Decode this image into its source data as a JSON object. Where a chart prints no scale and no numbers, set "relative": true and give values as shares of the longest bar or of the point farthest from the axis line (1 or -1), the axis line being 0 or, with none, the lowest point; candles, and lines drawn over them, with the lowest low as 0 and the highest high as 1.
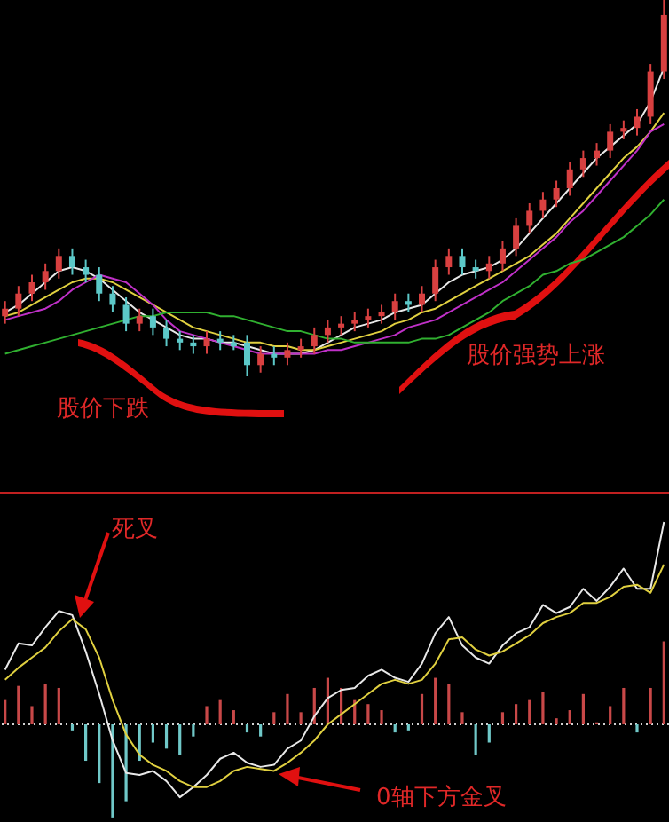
{
  "chart_data": [
    {
      "type": "candlestick",
      "relative": true,
      "categories": [
        null,
        null,
        null,
        null,
        null,
        null,
        null,
        null,
        null,
        null,
        null,
        null,
        null,
        null,
        null,
        null,
        null,
        null,
        null,
        null,
        null,
        null,
        null,
        null,
        null,
        null,
        null,
        null,
        null,
        null,
        null,
        null,
        null,
        null,
        null,
        null,
        null,
        null,
        null,
        null,
        null,
        null,
        null,
        null,
        null,
        null,
        null,
        null,
        null,
        null
      ],
      "ohlc": [
        [
          0.16,
          0.2,
          0.14,
          0.18
        ],
        [
          0.18,
          0.24,
          0.16,
          0.22
        ],
        [
          0.22,
          0.27,
          0.2,
          0.25
        ],
        [
          0.25,
          0.3,
          0.23,
          0.28
        ],
        [
          0.28,
          0.34,
          0.26,
          0.32
        ],
        [
          0.32,
          0.34,
          0.27,
          0.29
        ],
        [
          0.29,
          0.31,
          0.25,
          0.27
        ],
        [
          0.27,
          0.29,
          0.2,
          0.22
        ],
        [
          0.22,
          0.24,
          0.17,
          0.19
        ],
        [
          0.19,
          0.21,
          0.12,
          0.14
        ],
        [
          0.14,
          0.18,
          0.12,
          0.16
        ],
        [
          0.16,
          0.18,
          0.11,
          0.13
        ],
        [
          0.13,
          0.15,
          0.08,
          0.1
        ],
        [
          0.1,
          0.12,
          0.07,
          0.09
        ],
        [
          0.09,
          0.11,
          0.06,
          0.08
        ],
        [
          0.08,
          0.12,
          0.06,
          0.1
        ],
        [
          0.1,
          0.12,
          0.07,
          0.09
        ],
        [
          0.09,
          0.11,
          0.07,
          0.08
        ],
        [
          0.09,
          0.11,
          0,
          0.03
        ],
        [
          0.03,
          0.08,
          0.01,
          0.06
        ],
        [
          0.06,
          0.08,
          0.03,
          0.05
        ],
        [
          0.05,
          0.09,
          0.03,
          0.07
        ],
        [
          0.07,
          0.1,
          0.05,
          0.08
        ],
        [
          0.08,
          0.13,
          0.06,
          0.11
        ],
        [
          0.11,
          0.15,
          0.09,
          0.13
        ],
        [
          0.13,
          0.16,
          0.11,
          0.14
        ],
        [
          0.14,
          0.17,
          0.12,
          0.15
        ],
        [
          0.15,
          0.18,
          0.13,
          0.16
        ],
        [
          0.16,
          0.19,
          0.14,
          0.17
        ],
        [
          0.17,
          0.22,
          0.15,
          0.2
        ],
        [
          0.2,
          0.22,
          0.17,
          0.19
        ],
        [
          0.19,
          0.24,
          0.17,
          0.22
        ],
        [
          0.22,
          0.31,
          0.2,
          0.29
        ],
        [
          0.29,
          0.34,
          0.27,
          0.32
        ],
        [
          0.32,
          0.34,
          0.27,
          0.29
        ],
        [
          0.29,
          0.31,
          0.26,
          0.28
        ],
        [
          0.28,
          0.32,
          0.26,
          0.3
        ],
        [
          0.3,
          0.36,
          0.28,
          0.34
        ],
        [
          0.34,
          0.42,
          0.32,
          0.4
        ],
        [
          0.4,
          0.46,
          0.38,
          0.44
        ],
        [
          0.44,
          0.49,
          0.42,
          0.47
        ],
        [
          0.47,
          0.52,
          0.45,
          0.5
        ],
        [
          0.5,
          0.57,
          0.48,
          0.55
        ],
        [
          0.55,
          0.6,
          0.53,
          0.58
        ],
        [
          0.58,
          0.62,
          0.56,
          0.6
        ],
        [
          0.6,
          0.67,
          0.58,
          0.65
        ],
        [
          0.65,
          0.68,
          0.63,
          0.66
        ],
        [
          0.66,
          0.71,
          0.64,
          0.69
        ],
        [
          0.69,
          0.83,
          0.67,
          0.81
        ],
        [
          0.81,
          1,
          0.79,
          0.96
        ]
      ],
      "colors": [
        "#d84040",
        "#d84040",
        "#d84040",
        "#d84040",
        "#d84040",
        "#5cc8c8",
        "#5cc8c8",
        "#5cc8c8",
        "#5cc8c8",
        "#5cc8c8",
        "#d84040",
        "#5cc8c8",
        "#5cc8c8",
        "#5cc8c8",
        "#5cc8c8",
        "#d84040",
        "#5cc8c8",
        "#5cc8c8",
        "#5cc8c8",
        "#d84040",
        "#5cc8c8",
        "#d84040",
        "#d84040",
        "#d84040",
        "#d84040",
        "#d84040",
        "#d84040",
        "#d84040",
        "#d84040",
        "#d84040",
        "#5cc8c8",
        "#d84040",
        "#d84040",
        "#d84040",
        "#5cc8c8",
        "#5cc8c8",
        "#d84040",
        "#d84040",
        "#d84040",
        "#d84040",
        "#d84040",
        "#d84040",
        "#d84040",
        "#d84040",
        "#d84040",
        "#d84040",
        "#d84040",
        "#d84040",
        "#d84040",
        "#d84040"
      ],
      "series": [
        {
          "type": "line",
          "color": "#e8e8e8",
          "values": [
            0.17,
            0.19,
            0.22,
            0.25,
            0.28,
            0.29,
            0.28,
            0.26,
            0.23,
            0.2,
            0.17,
            0.15,
            0.13,
            0.11,
            0.1,
            0.1,
            0.09,
            0.09,
            0.08,
            0.07,
            0.06,
            0.06,
            0.06,
            0.07,
            0.09,
            0.11,
            0.13,
            0.14,
            0.15,
            0.17,
            0.18,
            0.19,
            0.22,
            0.25,
            0.27,
            0.28,
            0.29,
            0.31,
            0.34,
            0.38,
            0.42,
            0.46,
            0.5,
            0.54,
            0.58,
            0.61,
            0.64,
            0.67,
            0.73,
            0.82
          ]
        },
        {
          "type": "line",
          "color": "#e0d040",
          "values": [
            0.16,
            0.17,
            0.19,
            0.21,
            0.23,
            0.25,
            0.26,
            0.26,
            0.25,
            0.23,
            0.21,
            0.19,
            0.17,
            0.15,
            0.13,
            0.12,
            0.11,
            0.1,
            0.09,
            0.09,
            0.08,
            0.08,
            0.07,
            0.07,
            0.08,
            0.09,
            0.1,
            0.11,
            0.12,
            0.14,
            0.15,
            0.17,
            0.18,
            0.2,
            0.22,
            0.24,
            0.26,
            0.28,
            0.3,
            0.32,
            0.35,
            0.38,
            0.42,
            0.46,
            0.5,
            0.54,
            0.58,
            0.61,
            0.65,
            0.7
          ]
        },
        {
          "type": "line",
          "color": "#c030c8",
          "values": [
            0.15,
            0.16,
            0.17,
            0.18,
            0.2,
            0.23,
            0.25,
            0.27,
            0.26,
            0.25,
            0.22,
            0.19,
            0.15,
            0.12,
            0.11,
            0.1,
            0.09,
            0.08,
            0.07,
            0.06,
            0.06,
            0.06,
            0.06,
            0.06,
            0.07,
            0.07,
            0.08,
            0.09,
            0.1,
            0.11,
            0.13,
            0.14,
            0.15,
            0.17,
            0.19,
            0.21,
            0.23,
            0.25,
            0.28,
            0.31,
            0.34,
            0.37,
            0.41,
            0.44,
            0.48,
            0.52,
            0.56,
            0.6,
            0.65,
            0.67
          ]
        },
        {
          "type": "line",
          "color": "#30b030",
          "values": [
            0.06,
            0.07,
            0.08,
            0.09,
            0.1,
            0.11,
            0.12,
            0.13,
            0.14,
            0.15,
            0.16,
            0.16,
            0.17,
            0.17,
            0.17,
            0.17,
            0.16,
            0.16,
            0.15,
            0.14,
            0.13,
            0.12,
            0.12,
            0.11,
            0.1,
            0.1,
            0.09,
            0.09,
            0.09,
            0.09,
            0.09,
            0.1,
            0.1,
            0.11,
            0.13,
            0.15,
            0.17,
            0.2,
            0.22,
            0.24,
            0.27,
            0.28,
            0.3,
            0.31,
            0.33,
            0.35,
            0.37,
            0.4,
            0.43,
            0.47
          ]
        }
      ],
      "annotations": [
        "股价下跌",
        "股价强势上涨"
      ]
    },
    {
      "type": "bar",
      "relative": true,
      "ref_lines": [
        {
          "axis": "y",
          "value": 0,
          "color": "#d0d0d0",
          "line_style": "dotted"
        }
      ],
      "categories": [
        null,
        null,
        null,
        null,
        null,
        null,
        null,
        null,
        null,
        null,
        null,
        null,
        null,
        null,
        null,
        null,
        null,
        null,
        null,
        null,
        null,
        null,
        null,
        null,
        null,
        null,
        null,
        null,
        null,
        null,
        null,
        null,
        null,
        null,
        null,
        null,
        null,
        null,
        null,
        null,
        null,
        null,
        null,
        null,
        null,
        null,
        null,
        null,
        null,
        null
      ],
      "series": [
        {
          "type": "bar",
          "colors": [
            "#c84848",
            "#c84848",
            "#c84848",
            "#c84848",
            "#c84848",
            "#70c8c8",
            "#70c8c8",
            "#70c8c8",
            "#70c8c8",
            "#70c8c8",
            "#70c8c8",
            "#70c8c8",
            "#70c8c8",
            "#70c8c8",
            "#70c8c8",
            "#c84848",
            "#c84848",
            "#c84848",
            "#70c8c8",
            "#70c8c8",
            "#c84848",
            "#c84848",
            "#c84848",
            "#c84848",
            "#c84848",
            "#c84848",
            "#c84848",
            "#c84848",
            "#c84848",
            "#70c8c8",
            "#70c8c8",
            "#c84848",
            "#c84848",
            "#c84848",
            "#c84848",
            "#70c8c8",
            "#70c8c8",
            "#c84848",
            "#c84848",
            "#c84848",
            "#c84848",
            "#c84848",
            "#c84848",
            "#c84848",
            "#c84848",
            "#c84848",
            "#c84848",
            "#70c8c8",
            "#c84848",
            "#c84848"
          ],
          "values": [
            0.12,
            0.19,
            0.09,
            0.2,
            0.18,
            -0.03,
            -0.18,
            -0.29,
            -0.46,
            -0.38,
            -0.18,
            -0.09,
            -0.12,
            -0.15,
            -0.06,
            0.09,
            0.12,
            0.07,
            -0.04,
            -0.06,
            0.06,
            0.15,
            0.06,
            0.18,
            0.23,
            0.18,
            0.12,
            0.1,
            0.07,
            -0.04,
            -0.03,
            0.15,
            0.23,
            0.2,
            0.06,
            -0.15,
            -0.09,
            0.06,
            0.1,
            0.12,
            0.16,
            0.03,
            0.07,
            0.15,
            0.01,
            0.09,
            0.18,
            -0.04,
            0.18,
            0.41
          ]
        },
        {
          "type": "line",
          "color": "#e8e8e8",
          "values": [
            0.27,
            0.4,
            0.39,
            0.48,
            0.56,
            0.54,
            0.36,
            0.15,
            -0.08,
            -0.24,
            -0.25,
            -0.23,
            -0.28,
            -0.36,
            -0.31,
            -0.25,
            -0.17,
            -0.14,
            -0.19,
            -0.21,
            -0.2,
            -0.12,
            -0.08,
            0.04,
            0.13,
            0.17,
            0.18,
            0.24,
            0.27,
            0.23,
            0.21,
            0.3,
            0.45,
            0.53,
            0.39,
            0.33,
            0.3,
            0.39,
            0.45,
            0.48,
            0.59,
            0.55,
            0.58,
            0.67,
            0.61,
            0.68,
            0.77,
            0.67,
            0.67,
            1
          ]
        },
        {
          "type": "line",
          "color": "#e0d040",
          "values": [
            0.22,
            0.28,
            0.33,
            0.38,
            0.46,
            0.52,
            0.47,
            0.33,
            0.12,
            -0.05,
            -0.15,
            -0.2,
            -0.23,
            -0.28,
            -0.31,
            -0.31,
            -0.28,
            -0.23,
            -0.21,
            -0.22,
            -0.23,
            -0.19,
            -0.14,
            -0.08,
            0,
            0.05,
            0.1,
            0.15,
            0.2,
            0.22,
            0.2,
            0.22,
            0.3,
            0.42,
            0.43,
            0.37,
            0.34,
            0.36,
            0.4,
            0.44,
            0.5,
            0.53,
            0.55,
            0.6,
            0.6,
            0.63,
            0.68,
            0.69,
            0.65,
            0.79
          ]
        }
      ],
      "annotations": [
        "死叉",
        "0轴下方金叉"
      ]
    }
  ]
}
